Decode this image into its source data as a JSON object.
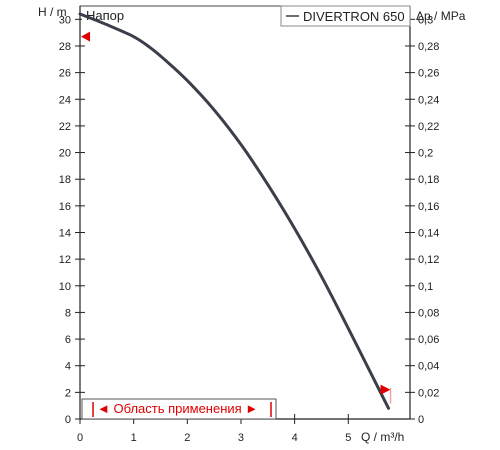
{
  "chart_data": {
    "type": "line",
    "title": "Напор",
    "ylabel": "H / m",
    "y2label": "Δp / MPa",
    "xlabel": "Q / m³/h",
    "xlim": [
      0,
      6.15
    ],
    "ylim": [
      0,
      31
    ],
    "y2lim": [
      0,
      0.31
    ],
    "x_ticks": [
      "0",
      "1",
      "2",
      "3",
      "4",
      "5"
    ],
    "y_ticks": [
      "0",
      "2",
      "4",
      "6",
      "8",
      "10",
      "12",
      "14",
      "16",
      "18",
      "20",
      "22",
      "24",
      "26",
      "28",
      "30"
    ],
    "y2_ticks": [
      "0",
      "0,02",
      "0,04",
      "0,06",
      "0,08",
      "0,1",
      "0,12",
      "0,14",
      "0,16",
      "0,18",
      "0,2",
      "0,22",
      "0,24",
      "0,26",
      "0,28",
      "0,3"
    ],
    "grid": false,
    "legend_position": "top-right",
    "series": [
      {
        "name": "DIVERTRON 650",
        "color": "#3a3f4a",
        "x": [
          0,
          0.5,
          1.0,
          1.3,
          1.6,
          2.0,
          2.5,
          3.0,
          3.5,
          4.0,
          4.5,
          5.0,
          5.5,
          5.75
        ],
        "y": [
          30.4,
          29.6,
          28.7,
          27.9,
          26.9,
          25.4,
          23.2,
          20.6,
          17.6,
          14.3,
          10.7,
          6.8,
          2.8,
          0.8
        ]
      }
    ],
    "application_range": {
      "label": "◄ Область применения ►",
      "q_min": 0.28,
      "q_max": 5.75,
      "h_max": 28.7,
      "h_min": 2.2,
      "color": "#e00000"
    }
  }
}
